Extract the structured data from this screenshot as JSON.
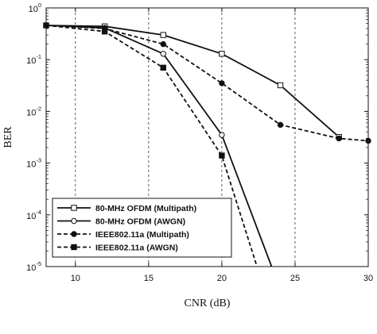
{
  "chart_data": {
    "type": "line",
    "title": "",
    "xlabel": "CNR (dB)",
    "ylabel": "BER",
    "xlim": [
      8,
      30
    ],
    "ylim": [
      1e-05,
      1
    ],
    "yscale": "log",
    "xticks": [
      10,
      15,
      20,
      25,
      30
    ],
    "yticks": [
      {
        "value": 1,
        "base": "10",
        "exp": "0"
      },
      {
        "value": 0.1,
        "base": "10",
        "exp": "-1"
      },
      {
        "value": 0.01,
        "base": "10",
        "exp": "-2"
      },
      {
        "value": 0.001,
        "base": "10",
        "exp": "-3"
      },
      {
        "value": 0.0001,
        "base": "10",
        "exp": "-4"
      },
      {
        "value": 1e-05,
        "base": "10",
        "exp": "-5"
      }
    ],
    "grid": "x-dashed",
    "legend_position": "bottom-left",
    "series": [
      {
        "name": "80-MHz OFDM (Multipath)",
        "style": "solid",
        "marker": "open-square",
        "color": "#111111",
        "x": [
          8,
          12,
          16,
          20,
          24,
          28
        ],
        "y": [
          0.46,
          0.44,
          0.3,
          0.13,
          0.032,
          0.0032
        ]
      },
      {
        "name": "80-MHz OFDM (AWGN)",
        "style": "solid",
        "marker": "open-circle",
        "color": "#111111",
        "x": [
          8,
          12,
          16,
          20,
          23.4
        ],
        "y": [
          0.46,
          0.41,
          0.13,
          0.0035,
          1e-05
        ]
      },
      {
        "name": "IEEE802.11a (Multipath)",
        "style": "dashed",
        "marker": "filled-circle",
        "color": "#111111",
        "x": [
          8,
          12,
          16,
          20,
          24,
          28,
          30
        ],
        "y": [
          0.46,
          0.4,
          0.2,
          0.035,
          0.0055,
          0.003,
          0.0027
        ]
      },
      {
        "name": "IEEE802.11a (AWGN)",
        "style": "dashed",
        "marker": "filled-square",
        "color": "#111111",
        "x": [
          8,
          12,
          16,
          20,
          22.4
        ],
        "y": [
          0.46,
          0.35,
          0.07,
          0.0014,
          1e-05
        ]
      }
    ]
  }
}
